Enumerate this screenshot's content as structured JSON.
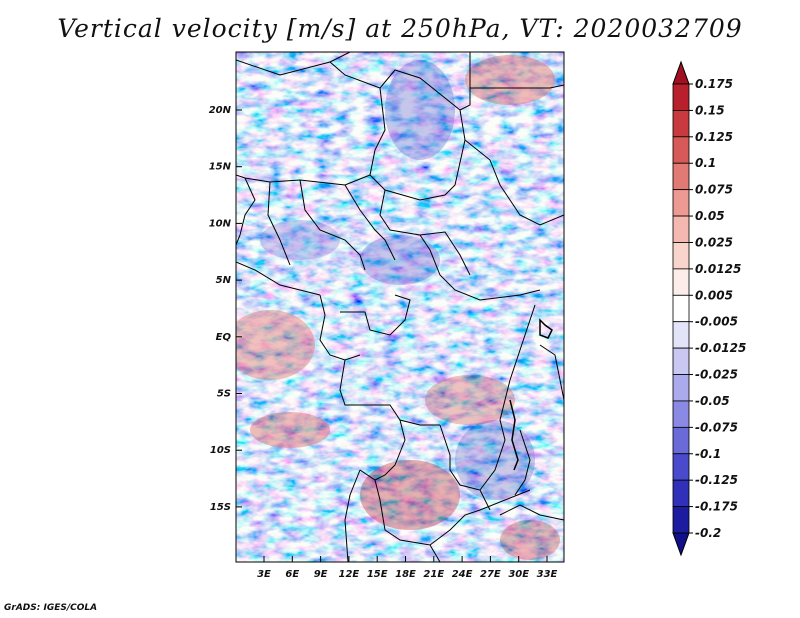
{
  "title": "Vertical velocity [m/s] at 250hPa, VT: 2020032709",
  "credit": "GrADS: IGES/COLA",
  "map": {
    "field": "vertical_velocity",
    "units": "m/s",
    "level": "250hPa",
    "lat_labels": [
      "20N",
      "15N",
      "10N",
      "5N",
      "EQ",
      "5S",
      "10S",
      "15S"
    ],
    "lon_labels": [
      "3E",
      "6E",
      "9E",
      "12E",
      "15E",
      "18E",
      "21E",
      "24E",
      "27E",
      "30E",
      "33E"
    ]
  },
  "colorbar": {
    "labels": [
      "0.175",
      "0.15",
      "0.125",
      "0.1",
      "0.075",
      "0.05",
      "0.025",
      "0.0125",
      "0.005",
      "-0.005",
      "-0.0125",
      "-0.025",
      "-0.05",
      "-0.075",
      "-0.1",
      "-0.125",
      "-0.175",
      "-0.2"
    ],
    "colors": [
      "#a01020",
      "#b8202c",
      "#c83a3e",
      "#d85a58",
      "#e27a74",
      "#ec9a92",
      "#f4b8b0",
      "#f8d4cc",
      "#fcecea",
      "#ffffff",
      "#e4e4f8",
      "#c8c8f2",
      "#aaaaec",
      "#8a8ae4",
      "#6a6ad8",
      "#4a4acc",
      "#3030b8",
      "#1c1ca0",
      "#10108a"
    ]
  }
}
